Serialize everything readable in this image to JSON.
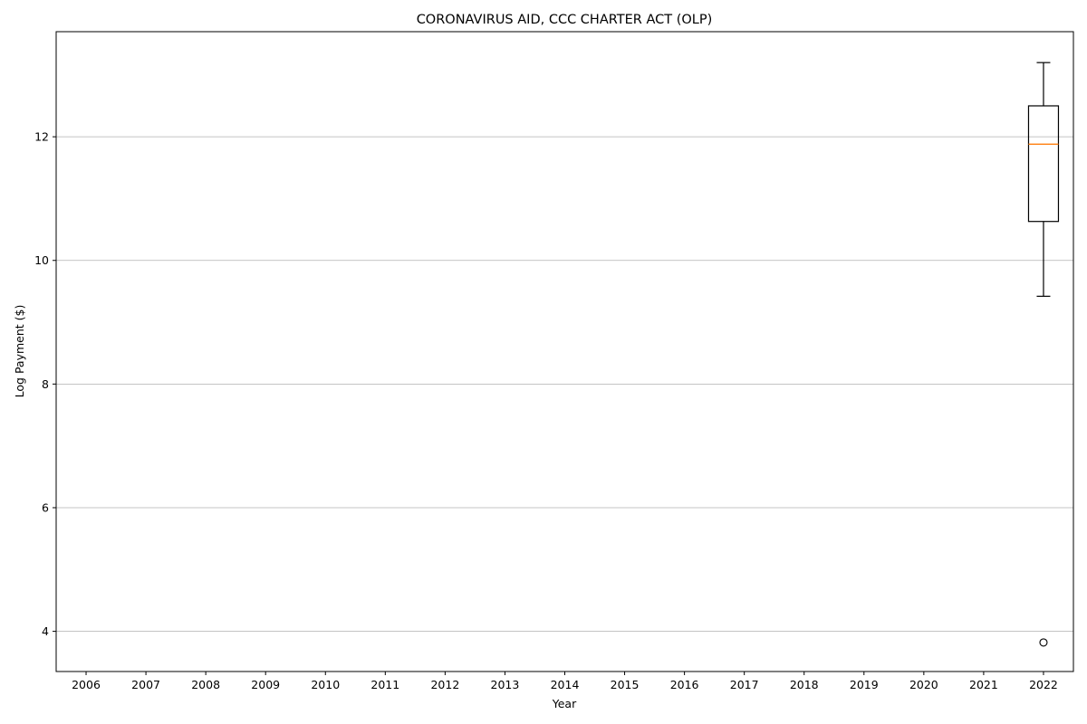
{
  "chart_data": {
    "type": "boxplot",
    "title": "CORONAVIRUS AID, CCC CHARTER ACT (OLP)",
    "xlabel": "Year",
    "ylabel": "Log Payment ($)",
    "categories": [
      "2006",
      "2007",
      "2008",
      "2009",
      "2010",
      "2011",
      "2012",
      "2013",
      "2014",
      "2015",
      "2016",
      "2017",
      "2018",
      "2019",
      "2020",
      "2021",
      "2022"
    ],
    "ylim": [
      3.35,
      13.7
    ],
    "yticks": [
      4,
      6,
      8,
      10,
      12
    ],
    "grid": "y",
    "boxes": [
      {
        "category": "2022",
        "whisker_low": 9.42,
        "q1": 10.63,
        "median": 11.88,
        "q3": 12.5,
        "whisker_high": 13.2,
        "outliers": [
          3.82
        ]
      }
    ],
    "colors": {
      "box": "#000000",
      "median": "#ff7f0e",
      "grid": "#b0b0b0"
    }
  }
}
